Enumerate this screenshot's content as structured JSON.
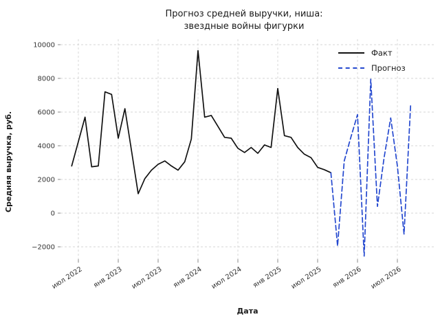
{
  "chart_data": {
    "type": "line",
    "title_lines": [
      "Прогноз средней выручки, ниша:",
      "звездные войны фигурки"
    ],
    "xlabel": "Дата",
    "ylabel": "Средняя выручка, руб.",
    "x_unit": "month",
    "x_start": "2022-06",
    "ylim": [
      -2800,
      10350
    ],
    "grid": true,
    "legend_position": "top-right",
    "colors": {
      "fact": "#111111",
      "forecast": "#2448cf",
      "grid": "#d4d4d4",
      "tick_text": "#333333"
    },
    "y_ticks": [
      {
        "v": 10000,
        "label": "10000"
      },
      {
        "v": 8000,
        "label": "8000"
      },
      {
        "v": 6000,
        "label": "6000"
      },
      {
        "v": 4000,
        "label": "4000"
      },
      {
        "v": 2000,
        "label": "2000"
      },
      {
        "v": 0,
        "label": "0"
      },
      {
        "v": -2000,
        "label": "−2000"
      }
    ],
    "x_ticks": [
      {
        "m": 1,
        "label": "июл 2022"
      },
      {
        "m": 7,
        "label": "янв 2023"
      },
      {
        "m": 13,
        "label": "июл 2023"
      },
      {
        "m": 19,
        "label": "янв 2024"
      },
      {
        "m": 25,
        "label": "июл 2024"
      },
      {
        "m": 31,
        "label": "янв 2025"
      },
      {
        "m": 37,
        "label": "июл 2025"
      },
      {
        "m": 43,
        "label": "янв 2026"
      },
      {
        "m": 49,
        "label": "июл 2026"
      }
    ],
    "series": [
      {
        "name": "Факт",
        "style": "solid",
        "color": "#111111",
        "start_month": "2022-06",
        "start_m": 0,
        "values": [
          2800,
          4250,
          5700,
          2750,
          2800,
          7200,
          7050,
          4450,
          6200,
          3700,
          1150,
          2050,
          2550,
          2900,
          3100,
          2800,
          2550,
          3050,
          4400,
          9650,
          5700,
          5800,
          5150,
          4500,
          4450,
          3850,
          3600,
          3900,
          3550,
          4050,
          3900,
          7400,
          4600,
          4500,
          3900,
          3500,
          3300,
          2720,
          2580,
          2400
        ]
      },
      {
        "name": "Прогноз",
        "style": "dashed",
        "color": "#2448cf",
        "start_month": "2025-09",
        "start_m": 39,
        "values": [
          2400,
          -1950,
          3100,
          4500,
          5850,
          -2550,
          7950,
          400,
          3300,
          5650,
          2800,
          -1250,
          6450
        ]
      }
    ]
  }
}
